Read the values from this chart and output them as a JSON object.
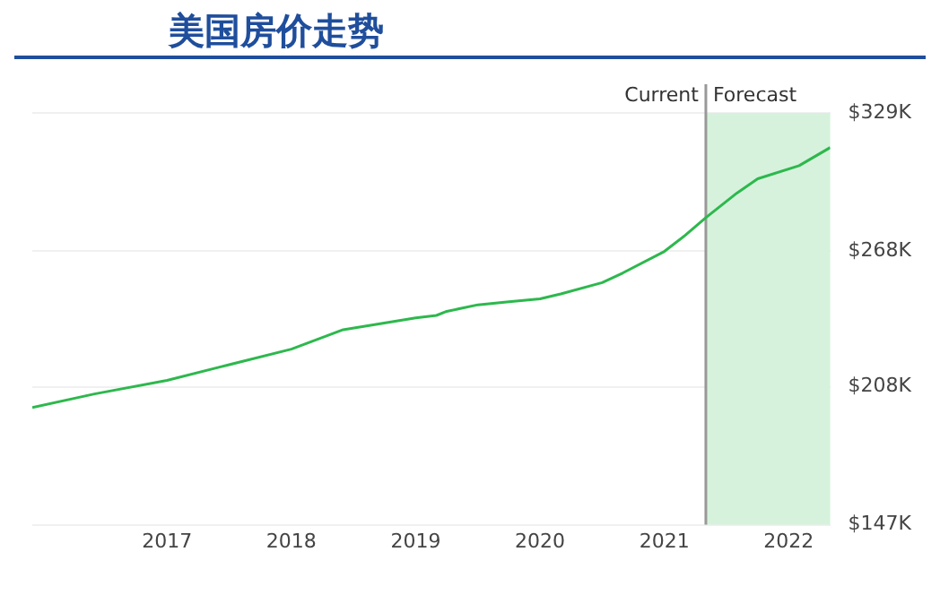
{
  "chart_data": {
    "type": "line",
    "title": "美国房价走势",
    "x": [
      "2015-12",
      "2016-06",
      "2017-01",
      "2017-06",
      "2018-01",
      "2018-06",
      "2019-01",
      "2019-03",
      "2019-04",
      "2019-07",
      "2019-10",
      "2020-01",
      "2020-03",
      "2020-07",
      "2020-09",
      "2021-01",
      "2021-03",
      "2021-05",
      "2021-08",
      "2021-10",
      "2022-02",
      "2022-05"
    ],
    "series": [
      {
        "color": "#2db84d",
        "values": [
          198.8,
          204.8,
          210.8,
          216.6,
          224.6,
          233.2,
          238.4,
          239.5,
          241.3,
          244.2,
          245.5,
          246.8,
          249,
          254,
          258.3,
          267.8,
          274.9,
          282.7,
          293.6,
          299.9,
          305.7,
          313.7
        ]
      }
    ],
    "xlim": [
      "2015-12",
      "2022-05"
    ],
    "xticks": [
      "2017",
      "2018",
      "2019",
      "2020",
      "2021",
      "2022"
    ],
    "ylim": [
      147,
      329
    ],
    "yticks": [
      {
        "value": 147,
        "label": "$147K"
      },
      {
        "value": 208,
        "label": "$208K"
      },
      {
        "value": 268,
        "label": "$268K"
      },
      {
        "value": 329,
        "label": "$329K"
      }
    ],
    "grid": "y",
    "legend": false,
    "marker": "none",
    "line_style": "solid",
    "ref_lines": [
      {
        "axis": "x",
        "value": "2021-05",
        "label": "Current",
        "color": "#999999"
      }
    ],
    "bands": [
      {
        "axis": "x",
        "from": "2021-05",
        "to": "2022-05",
        "label": "Forecast",
        "color": "#d6f2dc"
      }
    ]
  }
}
